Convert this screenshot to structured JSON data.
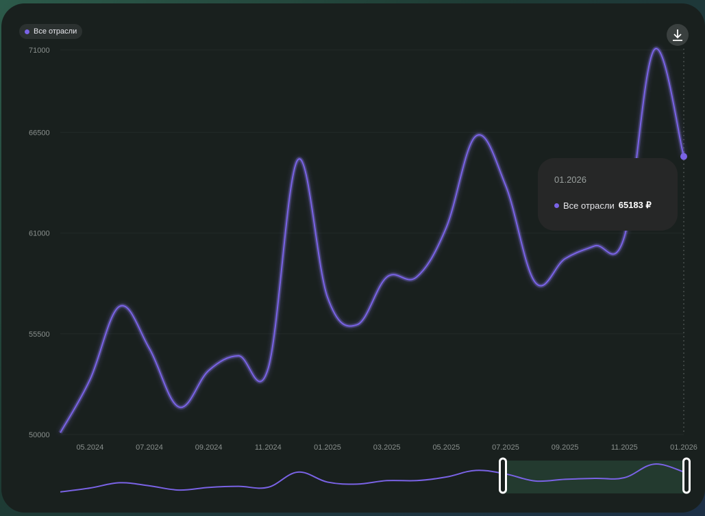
{
  "legend": {
    "label": "Все отрасли",
    "color": "#7a63e6"
  },
  "download_button": {
    "icon": "download-icon"
  },
  "tooltip": {
    "date": "01.2026",
    "series": "Все отрасли",
    "value": "65183 ₽"
  },
  "colors": {
    "line": "#7a63e6",
    "background": "#19201e",
    "navigator_window": "#233a2f"
  },
  "navigator": {
    "window_start": "07.2025",
    "window_end": "01.2026"
  },
  "chart_data": {
    "type": "line",
    "title": "",
    "xlabel": "",
    "ylabel": "",
    "ylim": [
      50000,
      71000
    ],
    "y_ticks": [
      "71000",
      "66500",
      "61000",
      "55500",
      "50000"
    ],
    "y_tick_values": [
      71000,
      66500,
      61000,
      55500,
      50000
    ],
    "x_ticks": [
      "05.2024",
      "07.2024",
      "09.2024",
      "11.2024",
      "01.2025",
      "03.2025",
      "05.2025",
      "07.2025",
      "09.2025",
      "11.2025",
      "01.2026"
    ],
    "grid": true,
    "legend_position": "top-left",
    "series": [
      {
        "name": "Все отрасли",
        "x": [
          "04.2024",
          "05.2024",
          "06.2024",
          "07.2024",
          "08.2024",
          "09.2024",
          "10.2024",
          "11.2024",
          "12.2024",
          "01.2025",
          "02.2025",
          "03.2025",
          "04.2025",
          "05.2025",
          "06.2025",
          "07.2025",
          "08.2025",
          "09.2025",
          "10.2025",
          "11.2025",
          "12.2025",
          "01.2026"
        ],
        "values": [
          50100,
          53000,
          57000,
          54700,
          51500,
          53500,
          54300,
          53600,
          65000,
          57500,
          56000,
          58600,
          58600,
          61300,
          66300,
          63600,
          58300,
          59600,
          60300,
          60800,
          71000,
          65183
        ]
      }
    ]
  }
}
